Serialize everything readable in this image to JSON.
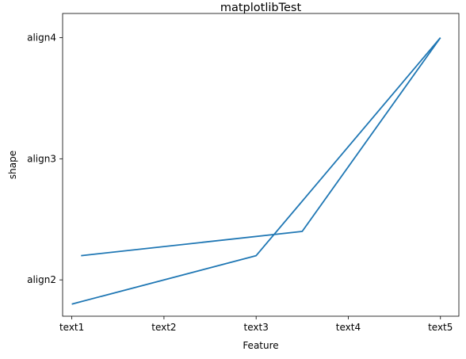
{
  "chart_data": {
    "type": "line",
    "title": "matplotlibTest",
    "xlabel": "Feature",
    "ylabel": "shape",
    "x_ticks": [
      "text1",
      "text2",
      "text3",
      "text4",
      "text5"
    ],
    "y_ticks": [
      "align2",
      "align3",
      "align4"
    ],
    "xlim": [
      -0.1,
      4.2
    ],
    "ylim": [
      1.7,
      4.2
    ],
    "grid": false,
    "series": [
      {
        "x": [
          0.1,
          2.5,
          4.0
        ],
        "y": [
          2.2,
          2.4,
          4.0
        ]
      },
      {
        "x": [
          0.0,
          2.0,
          4.0
        ],
        "y": [
          1.8,
          2.2,
          4.0
        ]
      }
    ],
    "colors": {
      "line": "#1f77b4",
      "axes": "#000000"
    }
  }
}
